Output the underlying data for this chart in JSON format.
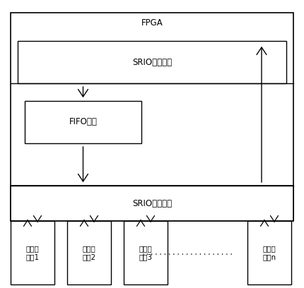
{
  "bg_color": "#ffffff",
  "fpga_label": "FPGA",
  "srio_inter_label": "SRIO互联模块",
  "fifo_label": "FIFO模块",
  "srio_port_label": "SRIO接口模块",
  "chips": [
    {
      "label": "芯片或\n板卡1"
    },
    {
      "label": "芯片或\n板卡2"
    },
    {
      "label": "芯片或\n板卡3"
    },
    {
      "label": "芯片或\n板卡n"
    }
  ],
  "dots_text": ".....................",
  "line_color": "#000000",
  "arrow_color": "#000000",
  "font_size": 8.5
}
